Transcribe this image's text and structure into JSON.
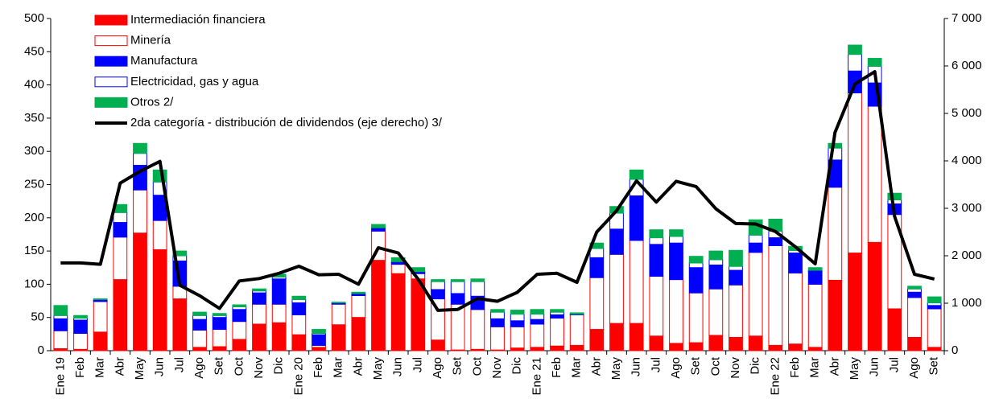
{
  "chart_data": {
    "type": "stacked_bar_line",
    "categories": [
      "Ene 19",
      "Feb",
      "Mar",
      "Abr",
      "May",
      "Jun",
      "Jul",
      "Ago",
      "Set",
      "Oct",
      "Nov",
      "Dic",
      "Ene 20",
      "Feb",
      "Mar",
      "Abr",
      "May",
      "Jun",
      "Jul",
      "Ago",
      "Set",
      "Oct",
      "Nov",
      "Dic",
      "Ene 21",
      "Feb",
      "Mar",
      "Abr",
      "May",
      "Jun",
      "Jul",
      "Ago",
      "Set",
      "Oct",
      "Nov",
      "Dic",
      "Ene 22",
      "Feb",
      "Mar",
      "Abr",
      "May",
      "Jun",
      "Jul",
      "Ago",
      "Set"
    ],
    "series": [
      {
        "name": "Intermediación financiera",
        "color": "#ff0000",
        "edgecolor": "#ff0000",
        "values": [
          3,
          2,
          28,
          107,
          177,
          152,
          78,
          5,
          6,
          17,
          40,
          42,
          24,
          5,
          39,
          50,
          136,
          116,
          108,
          16,
          1,
          2,
          1,
          4,
          5,
          7,
          8,
          32,
          41,
          41,
          22,
          11,
          12,
          23,
          20,
          22,
          8,
          10,
          5,
          106,
          147,
          163,
          63,
          20,
          5
        ]
      },
      {
        "name": "Minería",
        "color": "#ffffff",
        "edgecolor": "#ff0000",
        "values": [
          27,
          24,
          46,
          64,
          65,
          44,
          19,
          26,
          26,
          27,
          30,
          28,
          30,
          3,
          31,
          33,
          44,
          14,
          8,
          62,
          69,
          60,
          35,
          32,
          35,
          42,
          46,
          78,
          104,
          125,
          90,
          96,
          75,
          70,
          79,
          126,
          150,
          107,
          95,
          140,
          241,
          205,
          142,
          60,
          58
        ]
      },
      {
        "name": "Manufactura",
        "color": "#0000ff",
        "edgecolor": "#0000ff",
        "values": [
          18,
          20,
          2,
          22,
          37,
          38,
          38,
          16,
          18,
          18,
          17,
          38,
          18,
          16,
          1,
          2,
          4,
          3,
          2,
          14,
          16,
          20,
          12,
          9,
          7,
          5,
          0,
          30,
          38,
          67,
          48,
          55,
          38,
          36,
          22,
          14,
          12,
          30,
          20,
          41,
          33,
          35,
          16,
          8,
          5
        ]
      },
      {
        "name": "Electricidad, gas y agua",
        "color": "#ffffff",
        "edgecolor": "#0000ff",
        "values": [
          5,
          3,
          1,
          15,
          18,
          20,
          8,
          6,
          3,
          4,
          3,
          3,
          5,
          2,
          1,
          1,
          1,
          1,
          1,
          12,
          18,
          22,
          10,
          10,
          8,
          4,
          1,
          14,
          24,
          25,
          10,
          10,
          7,
          8,
          6,
          12,
          10,
          4,
          1,
          18,
          25,
          25,
          6,
          5,
          4
        ]
      },
      {
        "name": "Otros 2/",
        "color": "#00b050",
        "edgecolor": "#00b050",
        "values": [
          15,
          4,
          1,
          12,
          15,
          18,
          7,
          5,
          3,
          3,
          3,
          4,
          5,
          6,
          1,
          2,
          5,
          6,
          6,
          3,
          3,
          4,
          4,
          6,
          7,
          4,
          2,
          8,
          10,
          14,
          12,
          10,
          10,
          13,
          24,
          23,
          18,
          6,
          4,
          7,
          14,
          12,
          10,
          4,
          9
        ]
      },
      {
        "name": "2da categoría - distribución de dividendos (eje derecho) 3/",
        "color": "#000000",
        "axis": "y2",
        "values": [
          1850,
          1850,
          1820,
          3530,
          3780,
          3990,
          1380,
          1160,
          890,
          1470,
          1520,
          1630,
          1780,
          1600,
          1610,
          1400,
          2170,
          2060,
          1510,
          850,
          870,
          1100,
          1040,
          1230,
          1610,
          1630,
          1440,
          2500,
          2950,
          3580,
          3130,
          3570,
          3460,
          2990,
          2680,
          2670,
          2510,
          2190,
          1830,
          4600,
          5620,
          5880,
          2830,
          1610,
          1510
        ]
      }
    ],
    "ylim": [
      0,
      500
    ],
    "yticks": [
      0,
      50,
      100,
      150,
      200,
      250,
      300,
      350,
      400,
      450,
      500
    ],
    "y2lim": [
      0,
      7000
    ],
    "y2ticks": [
      0,
      {
        "value": 1000,
        "label": "1 000"
      },
      {
        "value": 2000,
        "label": "2 000"
      },
      {
        "value": 3000,
        "label": "3 000"
      },
      {
        "value": 4000,
        "label": "4 000"
      },
      {
        "value": 5000,
        "label": "5 000"
      },
      {
        "value": 6000,
        "label": "6 000"
      },
      {
        "value": 7000,
        "label": "7 000"
      }
    ],
    "grid": false,
    "legend": "upper left"
  }
}
